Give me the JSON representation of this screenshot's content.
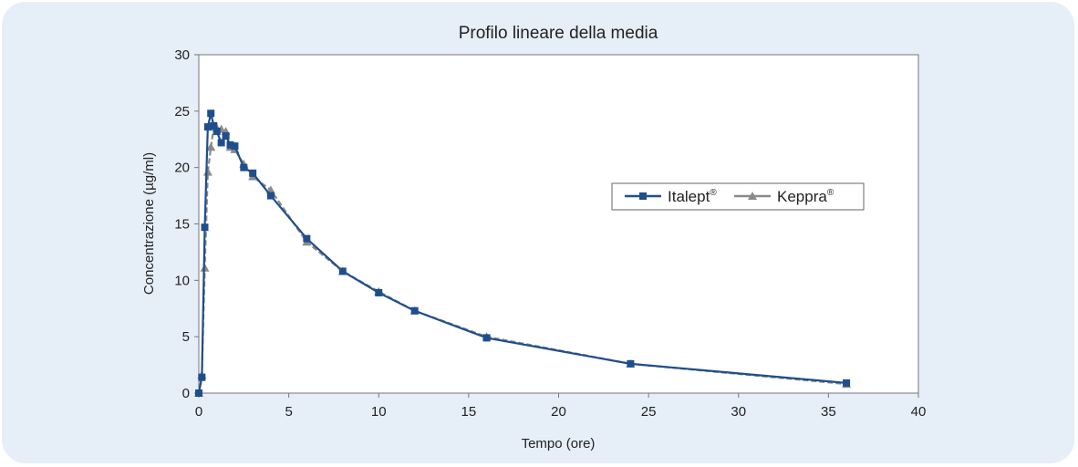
{
  "chart_data": {
    "type": "line",
    "title": "Profilo lineare della media",
    "xlabel": "Tempo (ore)",
    "ylabel": "Concentrazione (µg/ml)",
    "xlim": [
      0,
      40
    ],
    "ylim": [
      0,
      30
    ],
    "xticks": [
      0,
      5,
      10,
      15,
      20,
      25,
      30,
      35,
      40
    ],
    "yticks": [
      0,
      5,
      10,
      15,
      20,
      25,
      30
    ],
    "grid": false,
    "legend_position": "right",
    "series": [
      {
        "name": "Italept",
        "name_sup": "®",
        "color": "#1f4e8c",
        "marker": "square",
        "line_style": "solid",
        "x": [
          0,
          0.17,
          0.33,
          0.5,
          0.67,
          0.83,
          1.0,
          1.25,
          1.5,
          1.75,
          2.0,
          2.5,
          3.0,
          4.0,
          6.0,
          8.0,
          10.0,
          12.0,
          16.0,
          24.0,
          36.0
        ],
        "y": [
          0,
          1.4,
          14.7,
          23.6,
          24.8,
          23.7,
          23.2,
          22.2,
          22.8,
          22.0,
          21.9,
          20.0,
          19.5,
          17.5,
          13.7,
          10.8,
          8.9,
          7.3,
          4.9,
          2.6,
          0.9
        ]
      },
      {
        "name": "Keppra",
        "name_sup": "®",
        "color": "#8a8a8a",
        "marker": "triangle",
        "line_style": "dashed",
        "x": [
          0,
          0.17,
          0.33,
          0.5,
          0.67,
          0.83,
          1.0,
          1.25,
          1.5,
          1.75,
          2.0,
          2.5,
          3.0,
          4.0,
          6.0,
          8.0,
          10.0,
          12.0,
          16.0,
          24.0,
          36.0
        ],
        "y": [
          0,
          1.6,
          11.1,
          19.6,
          21.8,
          23.6,
          23.5,
          23.4,
          23.2,
          21.8,
          21.6,
          20.3,
          19.2,
          18.0,
          13.4,
          10.8,
          9.0,
          7.3,
          5.0,
          2.6,
          0.8
        ]
      }
    ]
  }
}
